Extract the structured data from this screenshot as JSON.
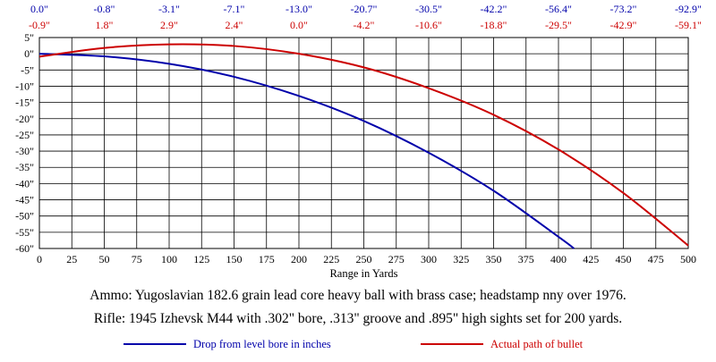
{
  "chart_data": {
    "type": "line",
    "xlabel": "Range in Yards",
    "ylabel": "",
    "xlim": [
      0,
      500
    ],
    "ylim": [
      -60,
      5
    ],
    "grid": true,
    "legend_position": "bottom",
    "x_ticks": [
      "0",
      "25",
      "50",
      "75",
      "100",
      "125",
      "150",
      "175",
      "200",
      "225",
      "250",
      "275",
      "300",
      "325",
      "350",
      "375",
      "400",
      "425",
      "450",
      "475",
      "500"
    ],
    "y_ticks": [
      "5\"",
      "0\"",
      "-5\"",
      "-10\"",
      "-15\"",
      "-20\"",
      "-25\"",
      "-30\"",
      "-35\"",
      "-40\"",
      "-45\"",
      "-50\"",
      "-55\"",
      "-60\""
    ],
    "top_drop_labels": [
      "0.0\"",
      "-0.8\"",
      "-3.1\"",
      "-7.1\"",
      "-13.0\"",
      "-20.7\"",
      "-30.5\"",
      "-42.2\"",
      "-56.4\"",
      "-73.2\"",
      "-92.9\""
    ],
    "top_path_labels": [
      "-0.9\"",
      "1.8\"",
      "2.9\"",
      "2.4\"",
      "0.0\"",
      "-4.2\"",
      "-10.6\"",
      "-18.8\"",
      "-29.5\"",
      "-42.9\"",
      "-59.1\""
    ],
    "colors": {
      "drop": "#0000aa",
      "path": "#cc0000",
      "axis": "#000000",
      "grid": "#000000"
    },
    "series": [
      {
        "name": "Drop from level bore in inches",
        "x": [
          0,
          50,
          100,
          150,
          200,
          250,
          300,
          350,
          400,
          412
        ],
        "values": [
          0.0,
          -0.8,
          -3.1,
          -7.1,
          -13.0,
          -20.7,
          -30.5,
          -42.2,
          -56.4,
          -60.0
        ]
      },
      {
        "name": "Actual path of bullet",
        "x": [
          0,
          50,
          100,
          150,
          200,
          250,
          300,
          350,
          400,
          450,
          500
        ],
        "values": [
          -0.9,
          1.8,
          2.9,
          2.4,
          0.0,
          -4.2,
          -10.6,
          -18.8,
          -29.5,
          -42.9,
          -59.1
        ]
      }
    ]
  },
  "captions": {
    "ammo": "Ammo:  Yugoslavian 182.6 grain lead core heavy ball with brass case; headstamp nny over 1976.",
    "rifle": "Rifle:  1945 Izhevsk M44 with .302\" bore, .313\" groove and .895\" high sights set for 200 yards."
  }
}
